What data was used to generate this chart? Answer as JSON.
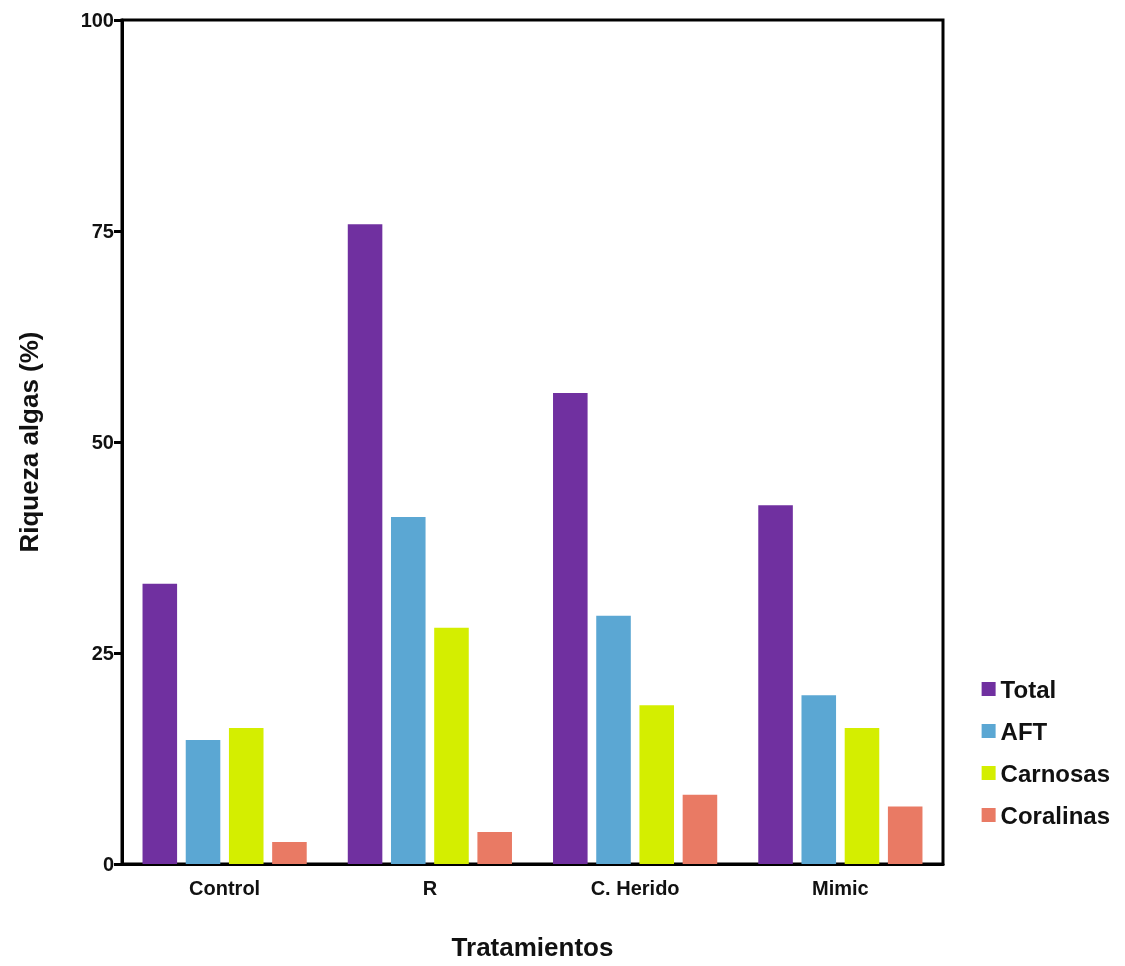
{
  "chart_data": {
    "type": "bar",
    "xlabel": "Tratamientos",
    "ylabel": "Riqueza algas (%)",
    "categories": [
      "Control",
      "R",
      "C. Herido",
      "Mimic"
    ],
    "series": [
      {
        "name": "Total",
        "color": "#7030a0",
        "values": [
          33.2,
          75.8,
          55.8,
          42.5
        ]
      },
      {
        "name": "AFT",
        "color": "#5ba7d3",
        "values": [
          14.7,
          41.1,
          29.4,
          20.0
        ]
      },
      {
        "name": "Carnosas",
        "color": "#d4ee00",
        "values": [
          16.1,
          28.0,
          18.8,
          16.1
        ]
      },
      {
        "name": "Coralinas",
        "color": "#e97a64",
        "values": [
          2.6,
          3.8,
          8.2,
          6.8
        ]
      }
    ],
    "ylim": [
      0,
      100
    ],
    "yticks": [
      0,
      25,
      50,
      75,
      100
    ],
    "grid": false,
    "legend": "right"
  }
}
